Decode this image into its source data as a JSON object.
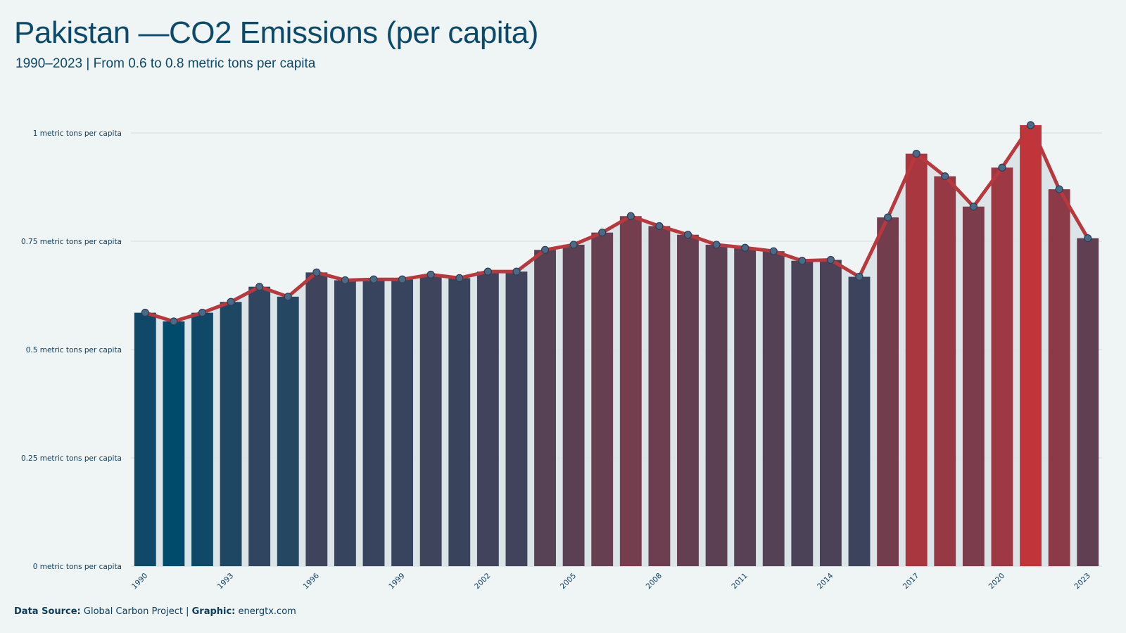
{
  "header": {
    "title": "Pakistan —CO2 Emissions (per capita)",
    "subtitle": "1990–2023 | From 0.6 to 0.8 metric tons per capita"
  },
  "footer": {
    "source_label": "Data Source:",
    "source_value": "Global Carbon Project |",
    "graphic_label": "Graphic:",
    "graphic_value": "energtx.com"
  },
  "colors": {
    "background": "#eff5f5",
    "line": "#b8383d",
    "low": "#004b6b",
    "high": "#c0343a",
    "area": "#d8e3e7",
    "grid": "#d5dbdd",
    "text": "#0b3c5d"
  },
  "chart_data": {
    "type": "bar",
    "categories": [
      "1990",
      "1991",
      "1992",
      "1993",
      "1994",
      "1995",
      "1996",
      "1997",
      "1998",
      "1999",
      "2000",
      "2001",
      "2002",
      "2003",
      "2004",
      "2005",
      "2006",
      "2007",
      "2008",
      "2009",
      "2010",
      "2011",
      "2012",
      "2013",
      "2014",
      "2015",
      "2016",
      "2017",
      "2018",
      "2019",
      "2020",
      "2021",
      "2022",
      "2023"
    ],
    "x_tick_labels": [
      "1990",
      "1993",
      "1996",
      "1999",
      "2002",
      "2005",
      "2008",
      "2011",
      "2014",
      "2017",
      "2020",
      "2023"
    ],
    "values": [
      0.585,
      0.565,
      0.585,
      0.61,
      0.645,
      0.622,
      0.678,
      0.66,
      0.662,
      0.662,
      0.673,
      0.665,
      0.68,
      0.68,
      0.73,
      0.742,
      0.77,
      0.808,
      0.785,
      0.765,
      0.742,
      0.735,
      0.727,
      0.705,
      0.707,
      0.668,
      0.805,
      0.952,
      0.9,
      0.83,
      0.92,
      1.018,
      0.87,
      0.757
    ],
    "overlay": "line with markers",
    "ylim": [
      0,
      1.0
    ],
    "y_ticks": [
      0,
      0.25,
      0.5,
      0.75,
      1
    ],
    "y_tick_labels": [
      "0 metric tons per capita",
      "0.25 metric tons per capita",
      "0.5 metric tons per capita",
      "0.75 metric tons per capita",
      "1 metric tons per capita"
    ],
    "grid": true,
    "legend": "none"
  }
}
